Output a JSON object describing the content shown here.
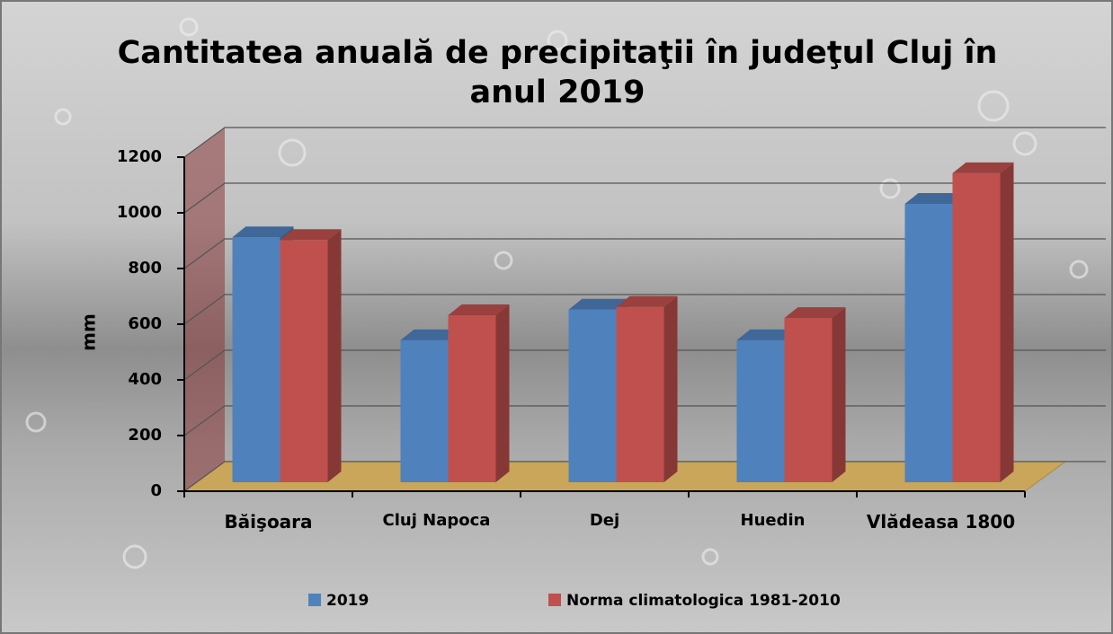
{
  "chart_data": {
    "type": "bar3d",
    "title": "Cantitatea anuală de precipitaţii în judeţul Cluj în anul 2019",
    "y_label": "mm",
    "categories": [
      "Băişoara",
      "Cluj Napoca",
      "Dej",
      "Huedin",
      "Vlădeasa 1800"
    ],
    "series": [
      {
        "name": "2019",
        "color": "#4f81bd",
        "values": [
          880,
          510,
          620,
          510,
          1000
        ]
      },
      {
        "name": "Norma climatologica 1981-2010",
        "color": "#c0504d",
        "values": [
          870,
          600,
          630,
          590,
          1110
        ]
      }
    ],
    "ylim": [
      0,
      1200
    ],
    "yticks": [
      0,
      200,
      400,
      600,
      800,
      1000,
      1200
    ],
    "grid": true,
    "legend": "bottom"
  }
}
